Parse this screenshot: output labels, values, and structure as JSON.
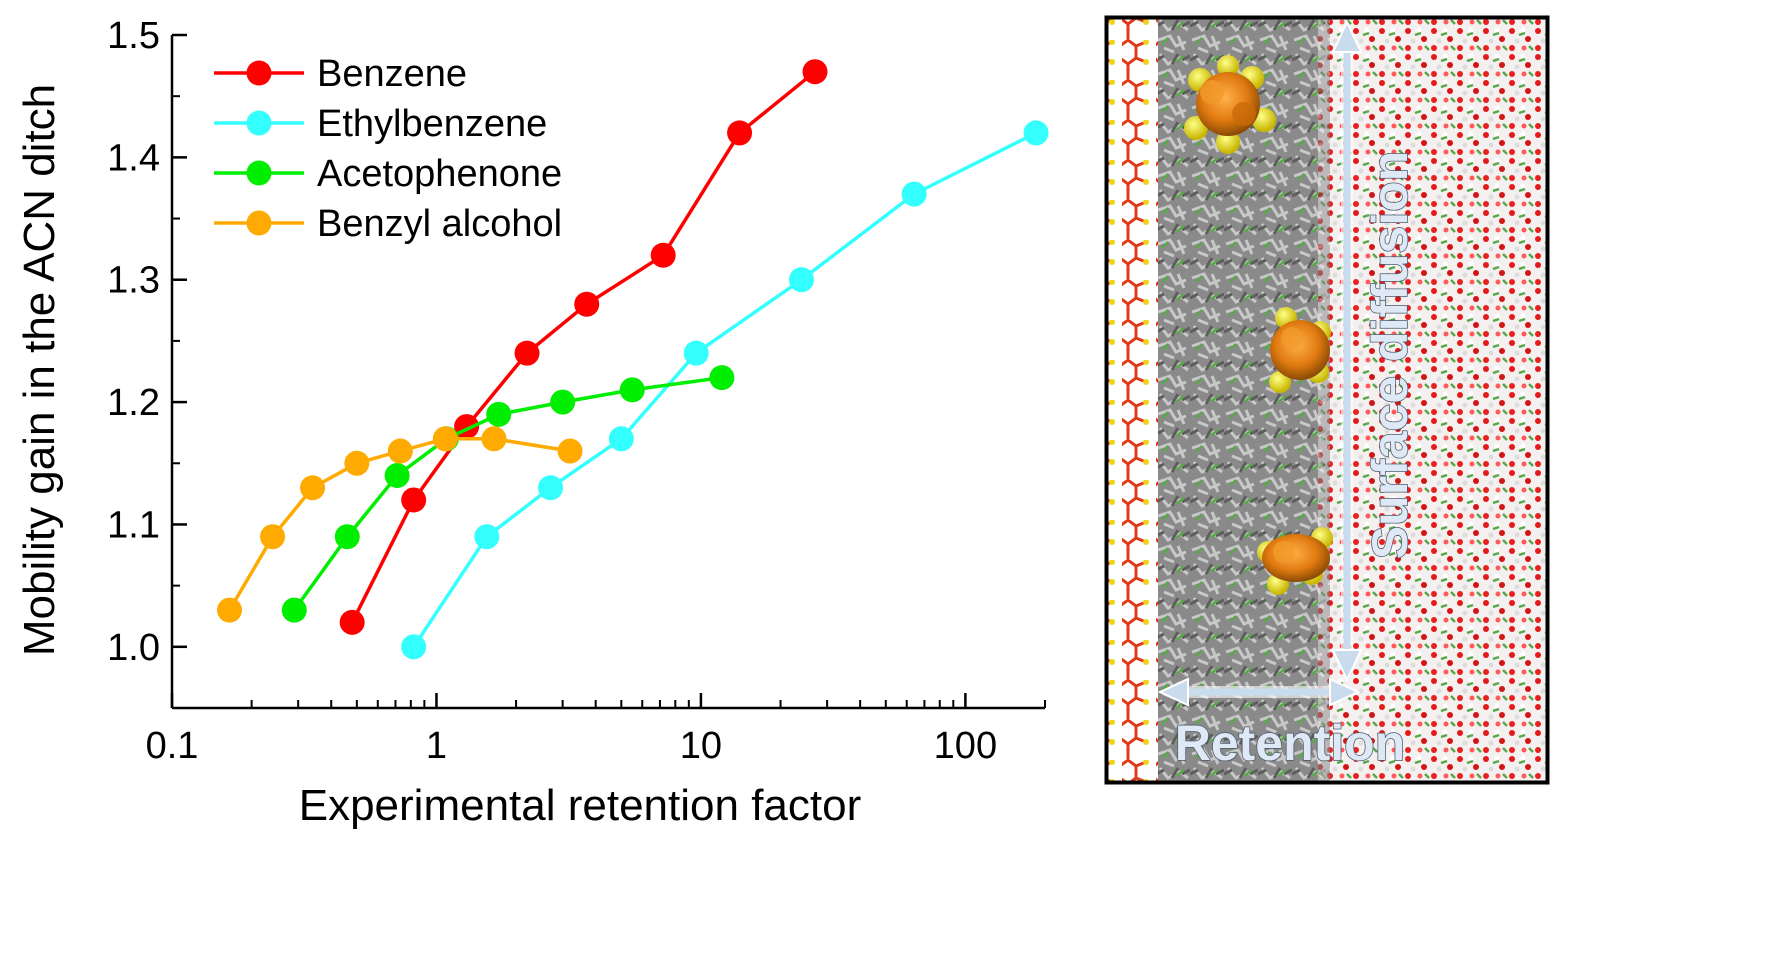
{
  "chart_data": {
    "type": "line",
    "xlabel": "Experimental retention factor",
    "ylabel": "Mobility gain in the ACN ditch",
    "xscale": "log",
    "xlim": [
      0.1,
      200
    ],
    "ylim": [
      0.95,
      1.5
    ],
    "xticks": [
      {
        "value": 0.1,
        "label": "0.1"
      },
      {
        "value": 1,
        "label": "1"
      },
      {
        "value": 10,
        "label": "10"
      },
      {
        "value": 100,
        "label": "100"
      }
    ],
    "yticks": [
      {
        "value": 1.0,
        "label": "1.0"
      },
      {
        "value": 1.1,
        "label": "1.1"
      },
      {
        "value": 1.2,
        "label": "1.2"
      },
      {
        "value": 1.3,
        "label": "1.3"
      },
      {
        "value": 1.4,
        "label": "1.4"
      },
      {
        "value": 1.5,
        "label": "1.5"
      }
    ],
    "legend_position": "top-left",
    "grid": false,
    "series": [
      {
        "name": "Benzene",
        "color": "#ff0000",
        "x": [
          0.48,
          0.82,
          1.3,
          2.2,
          3.7,
          7.2,
          14,
          27
        ],
        "y": [
          1.02,
          1.12,
          1.18,
          1.24,
          1.28,
          1.32,
          1.42,
          1.47
        ]
      },
      {
        "name": "Ethylbenzene",
        "color": "#33ffff",
        "x": [
          0.82,
          1.55,
          2.7,
          5.0,
          9.6,
          24,
          64,
          185
        ],
        "y": [
          1.0,
          1.09,
          1.13,
          1.17,
          1.24,
          1.3,
          1.37,
          1.42
        ]
      },
      {
        "name": "Acetophenone",
        "color": "#00ee00",
        "x": [
          0.29,
          0.46,
          0.71,
          1.09,
          1.72,
          3.0,
          5.5,
          12
        ],
        "y": [
          1.03,
          1.09,
          1.14,
          1.17,
          1.19,
          1.2,
          1.21,
          1.22
        ]
      },
      {
        "name": "Benzyl alcohol",
        "color": "#ffaa00",
        "x": [
          0.165,
          0.24,
          0.34,
          0.5,
          0.73,
          1.08,
          1.65,
          3.2
        ],
        "y": [
          1.03,
          1.09,
          1.13,
          1.15,
          1.16,
          1.17,
          1.17,
          1.16
        ]
      }
    ]
  },
  "inset": {
    "arrow_vertical_label": "Surface diffusion",
    "arrow_horizontal_label": "Retention"
  }
}
